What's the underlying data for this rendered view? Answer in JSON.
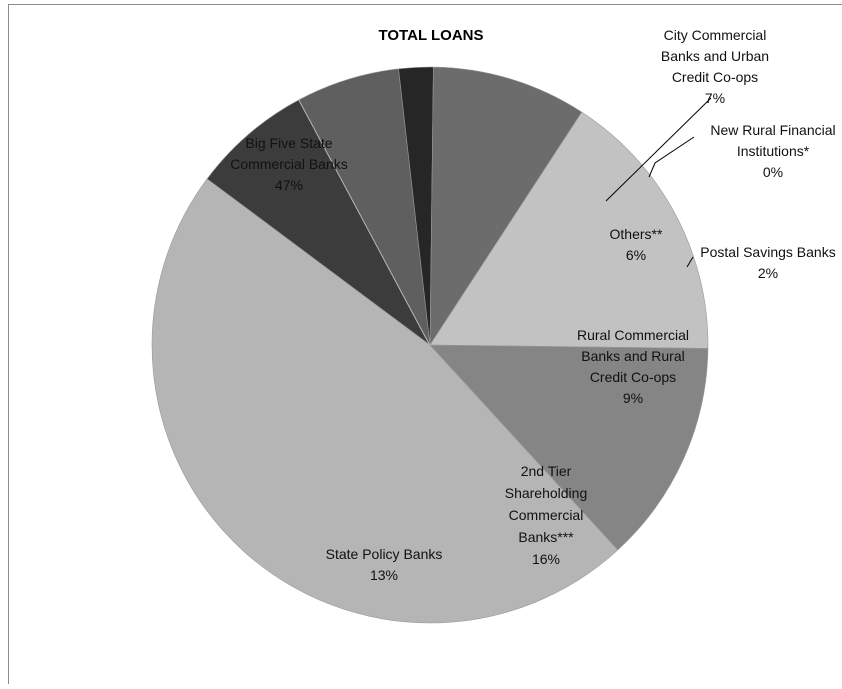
{
  "chart_data": {
    "type": "pie",
    "title": "TOTAL LOANS",
    "slices": [
      {
        "label_lines": [
          "Big Five State",
          "Commercial Banks"
        ],
        "value": 47,
        "value_label": "47%",
        "color": "#b5b5b5"
      },
      {
        "label_lines": [
          "City Commercial",
          "Banks and Urban",
          "Credit Co-ops"
        ],
        "value": 7,
        "value_label": "7%",
        "color": "#3c3c3c"
      },
      {
        "label_lines": [
          "New Rural Financial",
          "Institutions*"
        ],
        "value": 0,
        "value_label": "0%",
        "color": "#d9d9d9"
      },
      {
        "label_lines": [
          "Others**"
        ],
        "value": 6,
        "value_label": "6%",
        "color": "#5f5f5f"
      },
      {
        "label_lines": [
          "Postal Savings Banks"
        ],
        "value": 2,
        "value_label": "2%",
        "color": "#262626"
      },
      {
        "label_lines": [
          "Rural Commercial",
          "Banks and Rural",
          "Credit Co-ops"
        ],
        "value": 9,
        "value_label": "9%",
        "color": "#6c6c6c"
      },
      {
        "label_lines": [
          "2nd Tier",
          "Shareholding",
          "Commercial",
          "Banks***"
        ],
        "value": 16,
        "value_label": "16%",
        "color": "#c2c2c2"
      },
      {
        "label_lines": [
          "State Policy Banks"
        ],
        "value": 13,
        "value_label": "13%",
        "color": "#858585"
      }
    ],
    "start_angle_deg": 137.5,
    "direction": "clockwise",
    "legend": "none"
  }
}
